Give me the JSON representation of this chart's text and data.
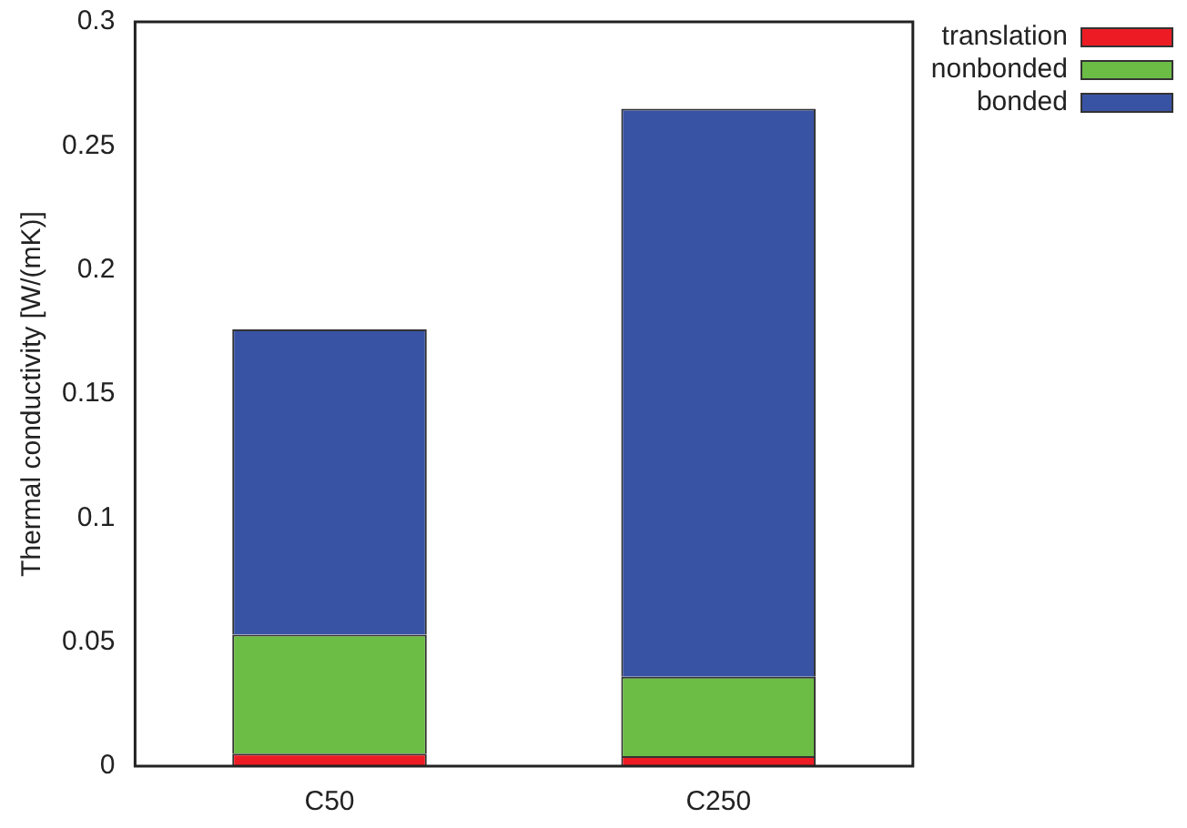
{
  "chart_data": {
    "type": "bar",
    "stacked": true,
    "ylabel": "Thermal conductivity [W/(mK)]",
    "categories": [
      "C50",
      "C250"
    ],
    "series": [
      {
        "name": "translation",
        "color": "#ed1c24",
        "values": [
          0.005,
          0.004
        ]
      },
      {
        "name": "nonbonded",
        "color": "#6cbd45",
        "values": [
          0.048,
          0.032
        ]
      },
      {
        "name": "bonded",
        "color": "#3953a4",
        "values": [
          0.123,
          0.229
        ]
      }
    ],
    "ylim": [
      0,
      0.3
    ],
    "yticks": [
      0,
      0.05,
      0.1,
      0.15,
      0.2,
      0.25,
      0.3
    ],
    "grid": false,
    "legend": "top right"
  }
}
